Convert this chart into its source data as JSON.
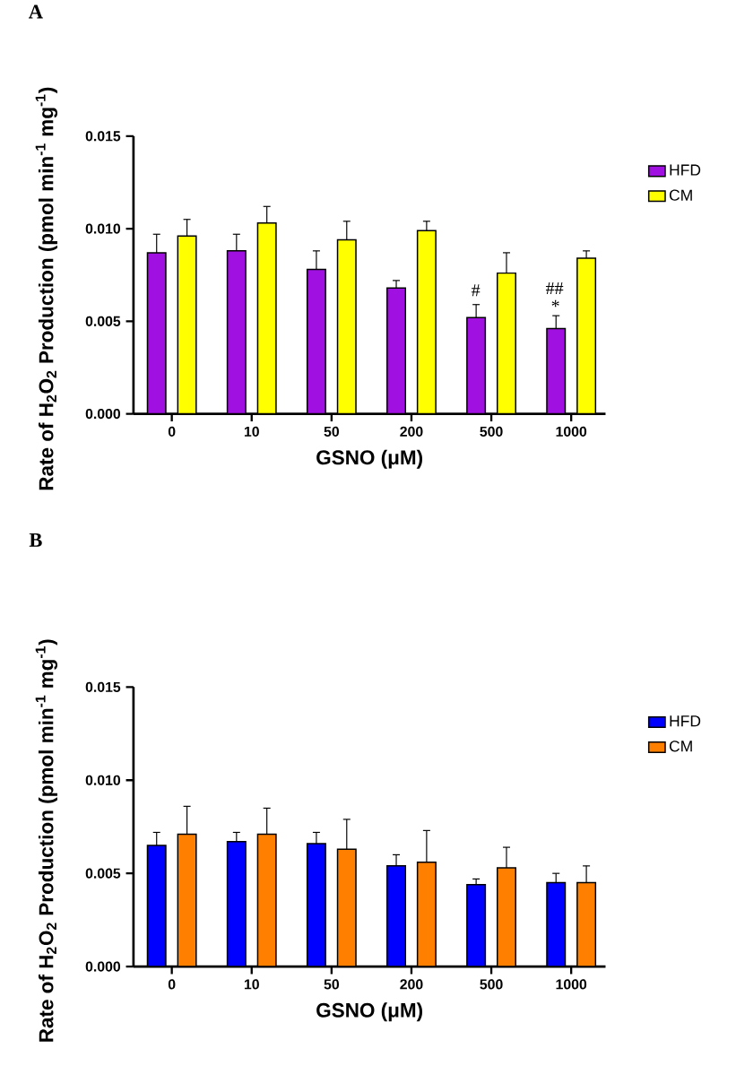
{
  "chart_data": [
    {
      "type": "bar",
      "title": "A",
      "xlabel": "GSNO (μM)",
      "ylabel": "Rate of H$_{2}$O$_{2}$ Production (pmol min$^{-1}$ mg$^{-1}$)",
      "categories": [
        "0",
        "10",
        "50",
        "200",
        "500",
        "1000"
      ],
      "series": [
        {
          "name": "HFD",
          "color": "#a010e0",
          "values": [
            0.0087,
            0.0088,
            0.0078,
            0.0068,
            0.0052,
            0.0046
          ],
          "errors": [
            [
              0.0087,
              0.0097
            ],
            [
              0.0088,
              0.0097
            ],
            [
              0.0078,
              0.0088
            ],
            [
              0.0068,
              0.0072
            ],
            [
              0.0052,
              0.0059
            ],
            [
              0.0046,
              0.0053
            ]
          ]
        },
        {
          "name": "CM",
          "color": "#ffff00",
          "values": [
            0.0096,
            0.0103,
            0.0094,
            0.0099,
            0.0076,
            0.0084
          ],
          "errors": [
            [
              0.0096,
              0.0105
            ],
            [
              0.0103,
              0.0112
            ],
            [
              0.0094,
              0.0104
            ],
            [
              0.0099,
              0.0104
            ],
            [
              0.0076,
              0.0087
            ],
            [
              0.0084,
              0.0088
            ]
          ]
        }
      ],
      "ylim": [
        0,
        0.015
      ],
      "yticks": [
        {
          "value": 0,
          "label": "0.000"
        },
        {
          "value": 0.005,
          "label": "0.005"
        },
        {
          "value": 0.01,
          "label": "0.010"
        },
        {
          "value": 0.015,
          "label": "0.015"
        }
      ],
      "legend": "right",
      "annotations": [
        "#",
        "##",
        "*"
      ]
    },
    {
      "type": "bar",
      "title": "B",
      "xlabel": "GSNO (μM)",
      "ylabel": "Rate of H$_{2}$O$_{2}$ Production (pmol min$^{-1}$ mg$^{-1}$)",
      "categories": [
        "0",
        "10",
        "50",
        "200",
        "500",
        "1000"
      ],
      "series": [
        {
          "name": "HFD",
          "color": "#0000ff",
          "values": [
            0.0065,
            0.0067,
            0.0066,
            0.0054,
            0.0044,
            0.0045
          ],
          "errors": [
            [
              0.0065,
              0.0072
            ],
            [
              0.0067,
              0.0072
            ],
            [
              0.0066,
              0.0072
            ],
            [
              0.0054,
              0.006
            ],
            [
              0.0044,
              0.0047
            ],
            [
              0.0045,
              0.005
            ]
          ]
        },
        {
          "name": "CM",
          "color": "#ff8000",
          "values": [
            0.0071,
            0.0071,
            0.0063,
            0.0056,
            0.0053,
            0.0045
          ],
          "errors": [
            [
              0.0071,
              0.0086
            ],
            [
              0.0071,
              0.0085
            ],
            [
              0.0063,
              0.0079
            ],
            [
              0.0056,
              0.0073
            ],
            [
              0.0053,
              0.0064
            ],
            [
              0.0045,
              0.0054
            ]
          ]
        }
      ],
      "ylim": [
        0,
        0.015
      ],
      "yticks": [
        {
          "value": 0,
          "label": "0.000"
        },
        {
          "value": 0.005,
          "label": "0.005"
        },
        {
          "value": 0.01,
          "label": "0.010"
        },
        {
          "value": 0.015,
          "label": "0.015"
        }
      ],
      "legend": "right"
    }
  ]
}
